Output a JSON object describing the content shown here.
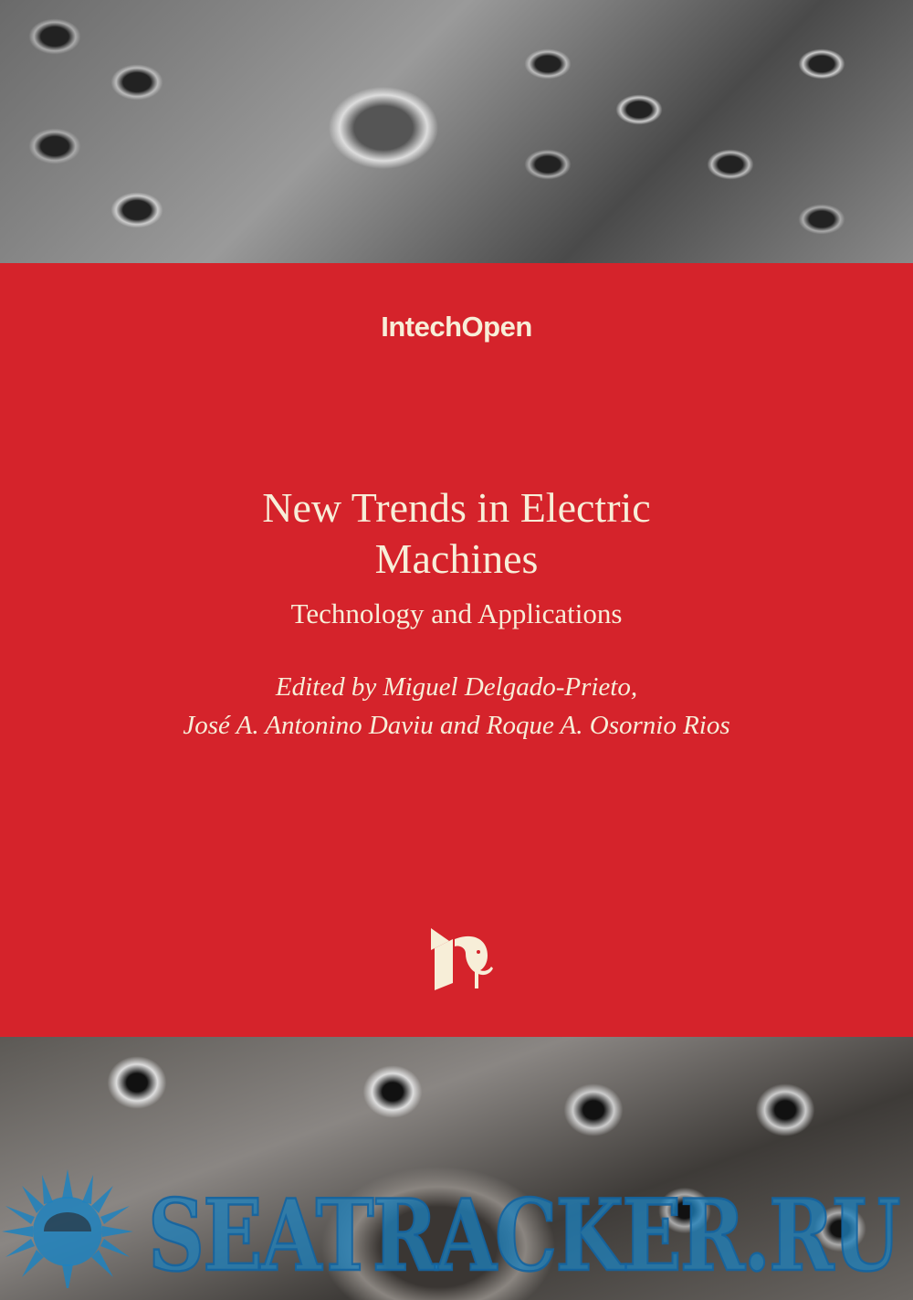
{
  "cover": {
    "publisher": "IntechOpen",
    "title_line1": "New Trends in Electric",
    "title_line2": "Machines",
    "subtitle": "Technology and Applications",
    "editors_line1": "Edited by Miguel Delgado-Prieto,",
    "editors_line2": "José A. Antonino Daviu and Roque A. Osornio Rios",
    "publisher_logo_icon": "elephant-door-logo-icon"
  },
  "watermark": {
    "text": "SEATRACKER.RU",
    "icon": "sun-icon"
  },
  "colors": {
    "band": "#d5232b",
    "text": "#f7eed8",
    "watermark": "#1e82be"
  }
}
